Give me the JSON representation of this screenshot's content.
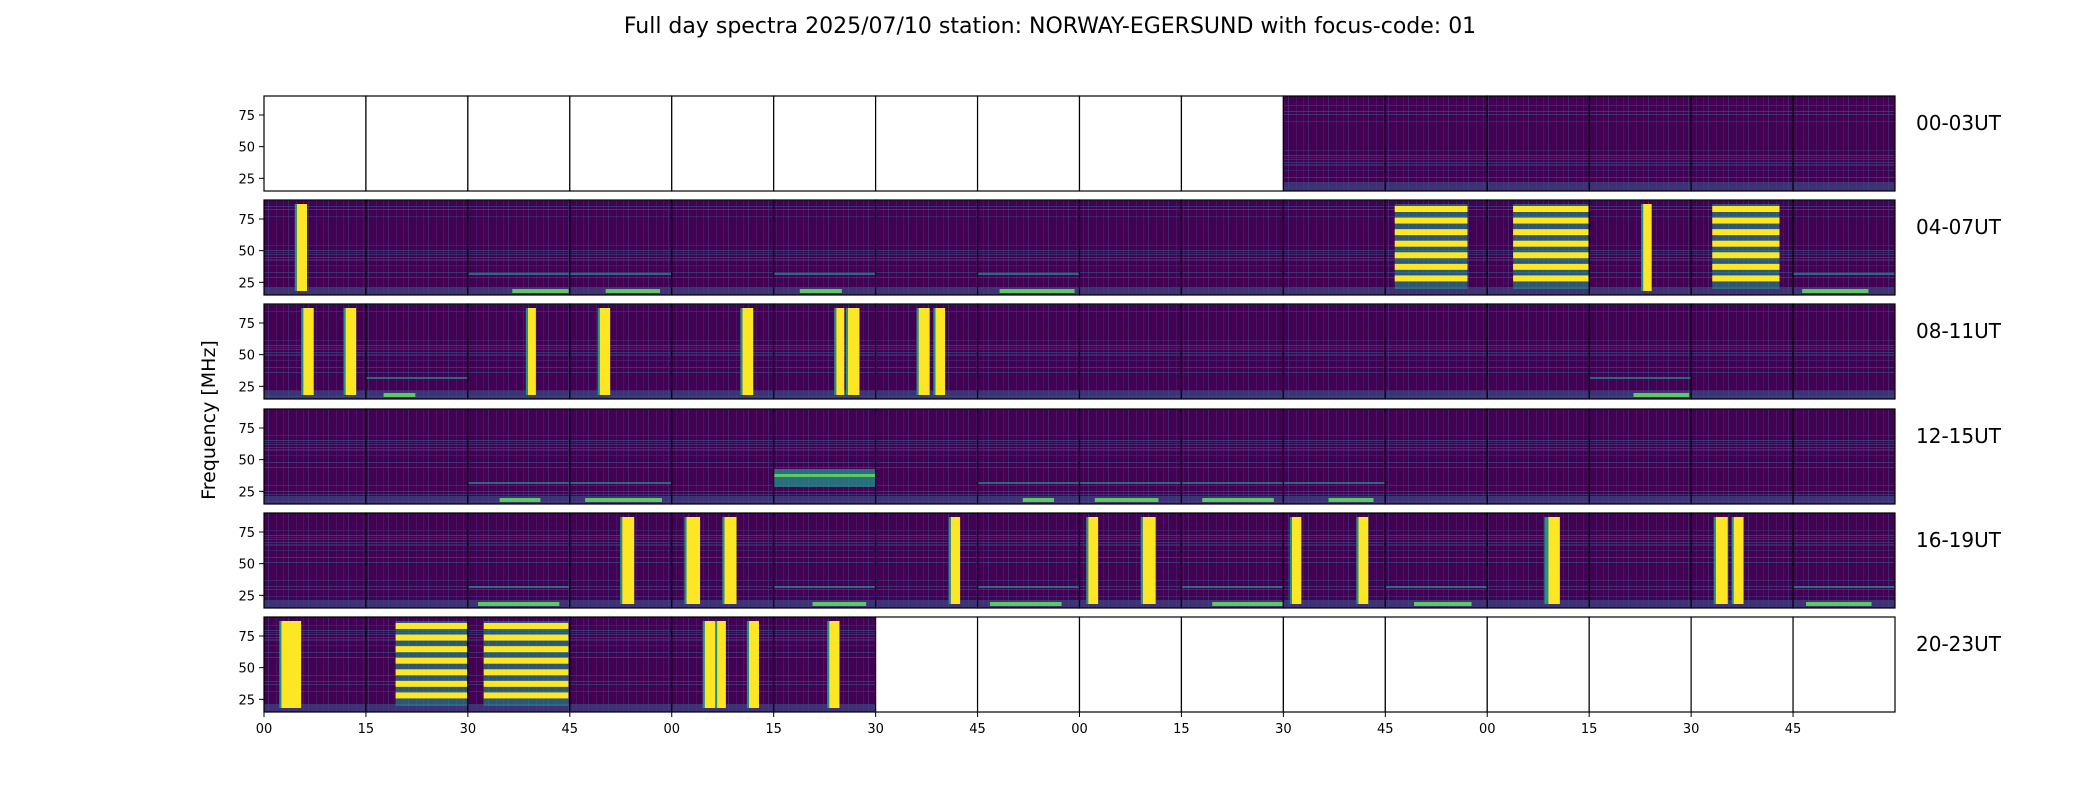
{
  "chart_data": {
    "type": "heatmap",
    "title": "Full day spectra 2025/07/10 station: NORWAY-EGERSUND with focus-code: 01",
    "ylabel": "Frequency [MHz]",
    "xlabel": "",
    "y_ticks": [
      "75",
      "50",
      "25"
    ],
    "x_tick_labels": [
      "00",
      "15",
      "30",
      "45",
      "00",
      "15",
      "30",
      "45",
      "00",
      "15",
      "30",
      "45",
      "00",
      "15",
      "30",
      "45"
    ],
    "colormap": "viridis",
    "colors": {
      "background": "#440154",
      "low": "#3b528b",
      "mid": "#21918c",
      "high": "#5ec962",
      "peak": "#fde725"
    },
    "grid": false,
    "rows": [
      {
        "label": "00-03UT",
        "panels": [
          {
            "state": "empty"
          },
          {
            "state": "empty"
          },
          {
            "state": "empty"
          },
          {
            "state": "empty"
          },
          {
            "state": "empty"
          },
          {
            "state": "empty"
          },
          {
            "state": "empty"
          },
          {
            "state": "empty"
          },
          {
            "state": "empty"
          },
          {
            "state": "empty"
          },
          {
            "state": "data",
            "activity": "quiet"
          },
          {
            "state": "data",
            "activity": "quiet"
          },
          {
            "state": "data",
            "activity": "quiet"
          },
          {
            "state": "data",
            "activity": "quiet"
          },
          {
            "state": "data",
            "activity": "quiet"
          },
          {
            "state": "data",
            "activity": "quiet"
          }
        ]
      },
      {
        "label": "04-07UT",
        "panels": [
          {
            "state": "data",
            "activity": "bursts"
          },
          {
            "state": "data",
            "activity": "quiet"
          },
          {
            "state": "data",
            "activity": "low-band"
          },
          {
            "state": "data",
            "activity": "low-band"
          },
          {
            "state": "data",
            "activity": "quiet"
          },
          {
            "state": "data",
            "activity": "low-band"
          },
          {
            "state": "data",
            "activity": "quiet"
          },
          {
            "state": "data",
            "activity": "low-band"
          },
          {
            "state": "data",
            "activity": "quiet"
          },
          {
            "state": "data",
            "activity": "quiet"
          },
          {
            "state": "data",
            "activity": "quiet"
          },
          {
            "state": "data",
            "activity": "strong"
          },
          {
            "state": "data",
            "activity": "strong"
          },
          {
            "state": "data",
            "activity": "bursts"
          },
          {
            "state": "data",
            "activity": "strong"
          },
          {
            "state": "data",
            "activity": "low-band"
          }
        ]
      },
      {
        "label": "08-11UT",
        "panels": [
          {
            "state": "data",
            "activity": "bursts"
          },
          {
            "state": "data",
            "activity": "low-band"
          },
          {
            "state": "data",
            "activity": "bursts"
          },
          {
            "state": "data",
            "activity": "bursts"
          },
          {
            "state": "data",
            "activity": "bursts"
          },
          {
            "state": "data",
            "activity": "bursts"
          },
          {
            "state": "data",
            "activity": "bursts"
          },
          {
            "state": "data",
            "activity": "quiet"
          },
          {
            "state": "data",
            "activity": "quiet"
          },
          {
            "state": "data",
            "activity": "quiet"
          },
          {
            "state": "data",
            "activity": "quiet"
          },
          {
            "state": "data",
            "activity": "quiet"
          },
          {
            "state": "data",
            "activity": "quiet"
          },
          {
            "state": "data",
            "activity": "low-band"
          },
          {
            "state": "data",
            "activity": "quiet"
          },
          {
            "state": "data",
            "activity": "quiet"
          }
        ]
      },
      {
        "label": "12-15UT",
        "panels": [
          {
            "state": "data",
            "activity": "quiet"
          },
          {
            "state": "data",
            "activity": "quiet"
          },
          {
            "state": "data",
            "activity": "low-band"
          },
          {
            "state": "data",
            "activity": "low-band"
          },
          {
            "state": "data",
            "activity": "quiet"
          },
          {
            "state": "data",
            "activity": "mid-band"
          },
          {
            "state": "data",
            "activity": "quiet"
          },
          {
            "state": "data",
            "activity": "low-band"
          },
          {
            "state": "data",
            "activity": "low-band"
          },
          {
            "state": "data",
            "activity": "low-band"
          },
          {
            "state": "data",
            "activity": "low-band"
          },
          {
            "state": "data",
            "activity": "quiet"
          },
          {
            "state": "data",
            "activity": "quiet"
          },
          {
            "state": "data",
            "activity": "quiet"
          },
          {
            "state": "data",
            "activity": "quiet"
          },
          {
            "state": "data",
            "activity": "quiet"
          }
        ]
      },
      {
        "label": "16-19UT",
        "panels": [
          {
            "state": "data",
            "activity": "quiet"
          },
          {
            "state": "data",
            "activity": "quiet"
          },
          {
            "state": "data",
            "activity": "low-band"
          },
          {
            "state": "data",
            "activity": "bursts"
          },
          {
            "state": "data",
            "activity": "bursts"
          },
          {
            "state": "data",
            "activity": "low-band"
          },
          {
            "state": "data",
            "activity": "bursts"
          },
          {
            "state": "data",
            "activity": "low-band"
          },
          {
            "state": "data",
            "activity": "bursts"
          },
          {
            "state": "data",
            "activity": "low-band"
          },
          {
            "state": "data",
            "activity": "bursts"
          },
          {
            "state": "data",
            "activity": "low-band"
          },
          {
            "state": "data",
            "activity": "bursts"
          },
          {
            "state": "data",
            "activity": "quiet"
          },
          {
            "state": "data",
            "activity": "bursts"
          },
          {
            "state": "data",
            "activity": "low-band"
          }
        ]
      },
      {
        "label": "20-23UT",
        "panels": [
          {
            "state": "data",
            "activity": "bursts"
          },
          {
            "state": "data",
            "activity": "strong"
          },
          {
            "state": "data",
            "activity": "strong"
          },
          {
            "state": "data",
            "activity": "quiet"
          },
          {
            "state": "data",
            "activity": "bursts"
          },
          {
            "state": "data",
            "activity": "bursts"
          },
          {
            "state": "empty"
          },
          {
            "state": "empty"
          },
          {
            "state": "empty"
          },
          {
            "state": "empty"
          },
          {
            "state": "empty"
          },
          {
            "state": "empty"
          },
          {
            "state": "empty"
          },
          {
            "state": "empty"
          },
          {
            "state": "empty"
          },
          {
            "state": "empty"
          }
        ]
      }
    ]
  }
}
